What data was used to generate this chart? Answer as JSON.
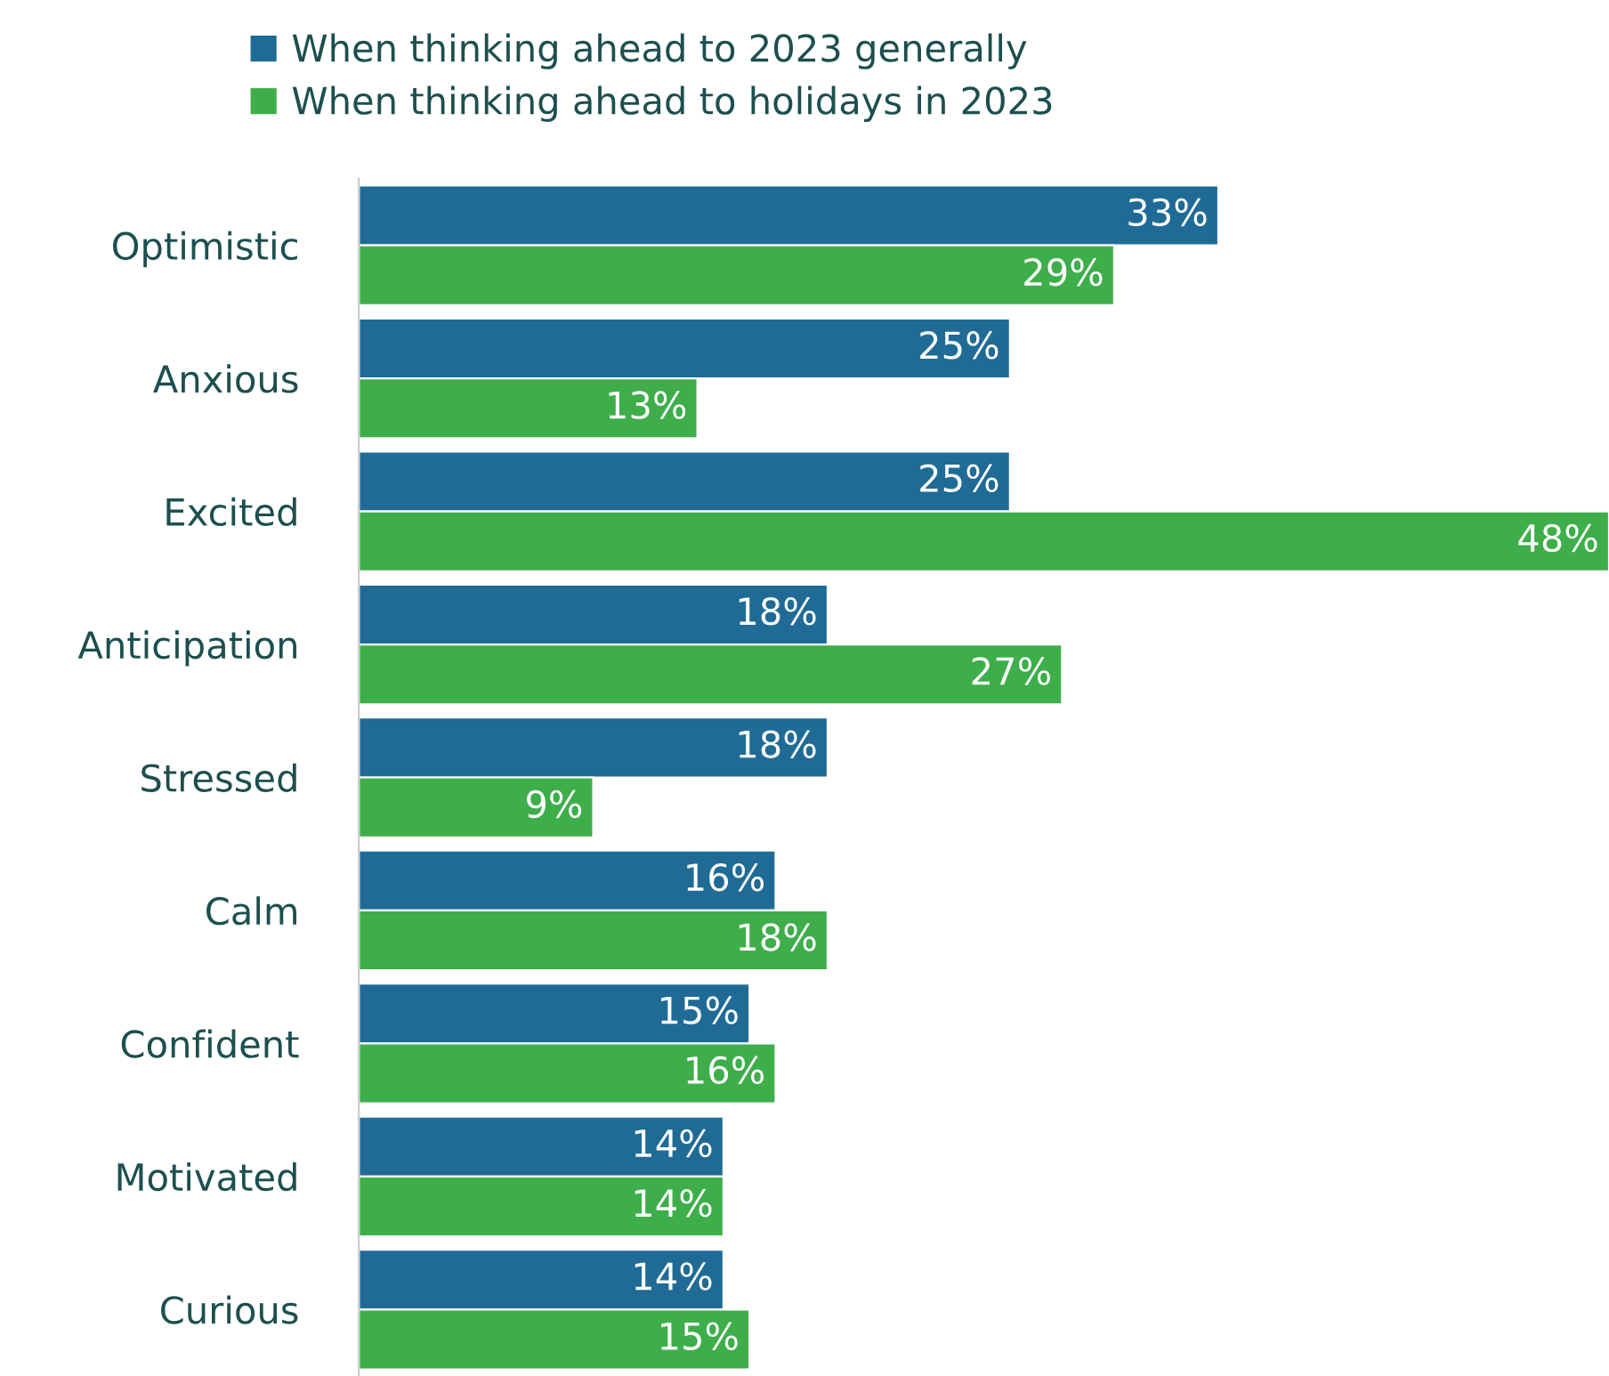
{
  "chart_data": {
    "type": "bar",
    "orientation": "horizontal",
    "categories": [
      "Optimistic",
      "Anxious",
      "Excited",
      "Anticipation",
      "Stressed",
      "Calm",
      "Confident",
      "Motivated",
      "Curious"
    ],
    "series": [
      {
        "name": "When thinking ahead to 2023 generally",
        "color": "#1f6b96",
        "values": [
          33,
          25,
          25,
          18,
          18,
          16,
          15,
          14,
          14
        ],
        "value_labels": [
          "33%",
          "25%",
          "25%",
          "18%",
          "18%",
          "16%",
          "15%",
          "14%",
          "14%"
        ]
      },
      {
        "name": "When thinking ahead to holidays in 2023",
        "color": "#3dae4a",
        "values": [
          29,
          13,
          48,
          27,
          9,
          18,
          16,
          14,
          15
        ],
        "value_labels": [
          "29%",
          "13%",
          "48%",
          "27%",
          "9%",
          "18%",
          "16%",
          "14%",
          "15%"
        ]
      }
    ],
    "tick_labels": "y",
    "legend": "top"
  }
}
